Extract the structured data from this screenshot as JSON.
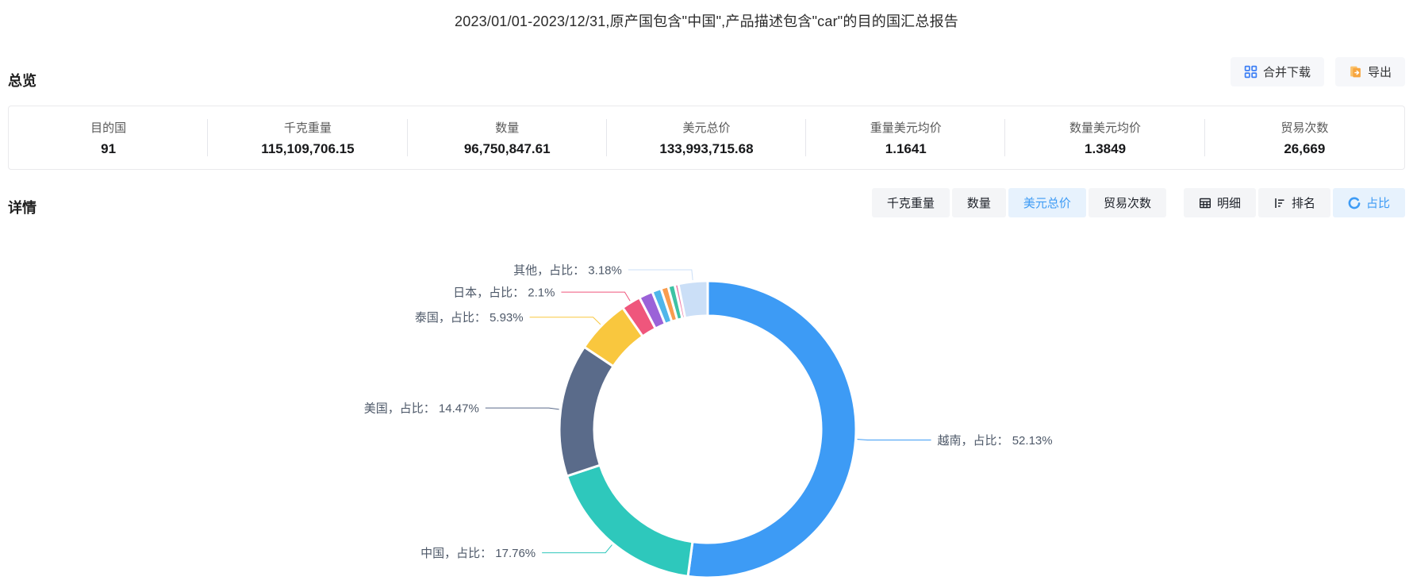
{
  "page": {
    "title": "2023/01/01-2023/12/31,原产国包含\"中国\",产品描述包含\"car\"的目的国汇总报告"
  },
  "overview": {
    "heading": "总览",
    "actions": {
      "merge_download_label": "合并下载",
      "merge_download_icon": "merge-grid-icon",
      "export_label": "导出",
      "export_icon": "file-export-icon"
    },
    "stats": [
      {
        "label": "目的国",
        "value": "91"
      },
      {
        "label": "千克重量",
        "value": "115,109,706.15"
      },
      {
        "label": "数量",
        "value": "96,750,847.61"
      },
      {
        "label": "美元总价",
        "value": "133,993,715.68"
      },
      {
        "label": "重量美元均价",
        "value": "1.1641"
      },
      {
        "label": "数量美元均价",
        "value": "1.3849"
      },
      {
        "label": "贸易次数",
        "value": "26,669"
      }
    ]
  },
  "details": {
    "heading": "详情",
    "metric_tabs": [
      {
        "label": "千克重量",
        "active": false
      },
      {
        "label": "数量",
        "active": false
      },
      {
        "label": "美元总价",
        "active": true
      },
      {
        "label": "贸易次数",
        "active": false
      }
    ],
    "view_tabs": [
      {
        "label": "明细",
        "icon": "table-icon",
        "active": false
      },
      {
        "label": "排名",
        "icon": "ranking-icon",
        "active": false
      },
      {
        "label": "占比",
        "icon": "pie-icon",
        "active": true
      }
    ]
  },
  "colors": {
    "accent": "#3d9bf5",
    "active_tab_bg": "#e7f2fd",
    "tab_bg": "#f4f5f7",
    "button_bg": "#f6f7fa",
    "export_icon_orange": "#f7a53f",
    "label_text": "#4e5969"
  },
  "chart_data": {
    "type": "pie",
    "subtype": "donut",
    "metric": "美元总价",
    "legend_position": "none",
    "label_format": "{name}，占比： {percent}%",
    "slices": [
      {
        "name": "越南",
        "percent": 52.13,
        "color": "#3d9bf5",
        "labeled": true,
        "label": "越南，占比： 52.13%"
      },
      {
        "name": "中国",
        "percent": 17.76,
        "color": "#2ec8bc",
        "labeled": true,
        "label": "中国，占比： 17.76%"
      },
      {
        "name": "美国",
        "percent": 14.47,
        "color": "#5a6b8a",
        "labeled": true,
        "label": "美国，占比： 14.47%"
      },
      {
        "name": "泰国",
        "percent": 5.93,
        "color": "#f9c73e",
        "labeled": true,
        "label": "泰国，占比： 5.93%"
      },
      {
        "name": "日本",
        "percent": 2.1,
        "color": "#ef567c",
        "labeled": true,
        "label": "日本，占比： 2.1%"
      },
      {
        "name": "small-1",
        "percent": 1.5,
        "color": "#9b62d8",
        "labeled": false
      },
      {
        "name": "small-2",
        "percent": 1.0,
        "color": "#4fb6ea",
        "labeled": false
      },
      {
        "name": "small-3",
        "percent": 0.8,
        "color": "#f99d4e",
        "labeled": false
      },
      {
        "name": "small-4",
        "percent": 0.73,
        "color": "#3dc2a4",
        "labeled": false
      },
      {
        "name": "small-5",
        "percent": 0.4,
        "color": "#f07ba8",
        "labeled": false
      },
      {
        "name": "其他",
        "percent": 3.18,
        "color": "#cbdff7",
        "labeled": true,
        "label": "其他，占比： 3.18%"
      }
    ]
  }
}
